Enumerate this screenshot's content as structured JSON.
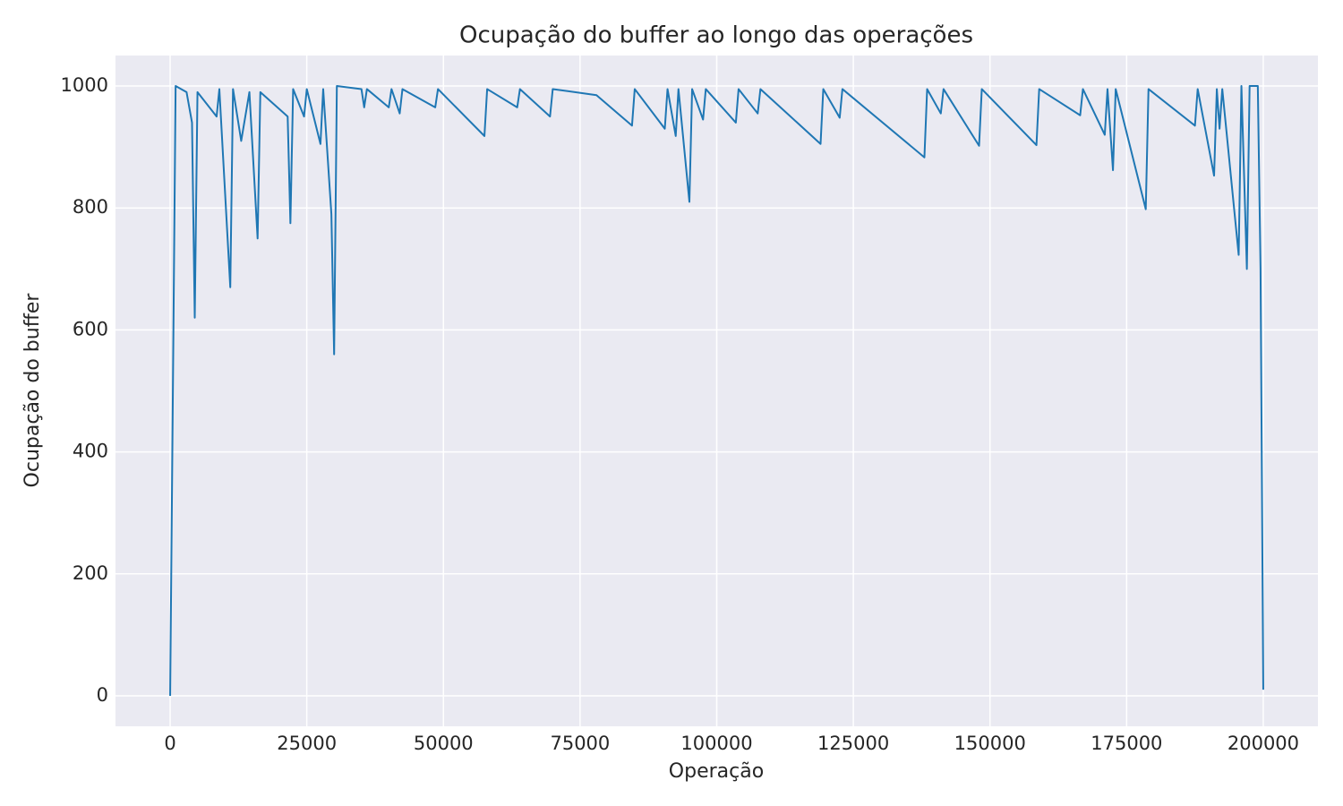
{
  "chart_data": {
    "type": "line",
    "title": "Ocupação do buffer ao longo das operações",
    "xlabel": "Operação",
    "ylabel": "Ocupação do buffer",
    "x": [
      0,
      1000,
      3000,
      4000,
      4500,
      5000,
      8500,
      9000,
      11000,
      11500,
      13000,
      14500,
      15000,
      16000,
      16500,
      21500,
      22000,
      22500,
      24500,
      25000,
      27500,
      28000,
      29500,
      30000,
      30500,
      35000,
      35500,
      36000,
      40000,
      40500,
      42000,
      42500,
      48500,
      49000,
      57500,
      58000,
      63500,
      64000,
      69500,
      70000,
      78000,
      84500,
      85000,
      90500,
      91000,
      92500,
      93000,
      95000,
      95500,
      97500,
      98000,
      103500,
      104000,
      107500,
      108000,
      119000,
      119500,
      122500,
      123000,
      138000,
      138500,
      141000,
      141500,
      148000,
      148500,
      158500,
      159000,
      166500,
      167000,
      171000,
      171500,
      172500,
      173000,
      178500,
      179000,
      187500,
      188000,
      191000,
      191500,
      192000,
      192500,
      195500,
      196000,
      197000,
      197500,
      199000,
      199500,
      200000
    ],
    "values": [
      0,
      1000,
      990,
      940,
      620,
      990,
      950,
      995,
      670,
      995,
      910,
      990,
      910,
      750,
      990,
      950,
      775,
      995,
      950,
      995,
      905,
      995,
      790,
      560,
      1000,
      995,
      965,
      995,
      965,
      995,
      955,
      995,
      965,
      995,
      918,
      995,
      965,
      995,
      950,
      995,
      985,
      935,
      995,
      930,
      995,
      918,
      995,
      810,
      995,
      945,
      995,
      940,
      995,
      955,
      995,
      905,
      995,
      948,
      995,
      883,
      995,
      955,
      995,
      902,
      995,
      903,
      995,
      952,
      995,
      920,
      995,
      862,
      995,
      798,
      995,
      935,
      995,
      853,
      995,
      930,
      995,
      723,
      1000,
      700,
      1000,
      1000,
      700,
      10
    ],
    "color": "#1f77b4",
    "xlim": [
      -10000,
      210000
    ],
    "xticks": [
      0,
      25000,
      50000,
      75000,
      100000,
      125000,
      150000,
      175000,
      200000
    ],
    "ylim": [
      -50,
      1050
    ],
    "yticks": [
      0,
      200,
      400,
      600,
      800,
      1000
    ],
    "grid": true
  }
}
